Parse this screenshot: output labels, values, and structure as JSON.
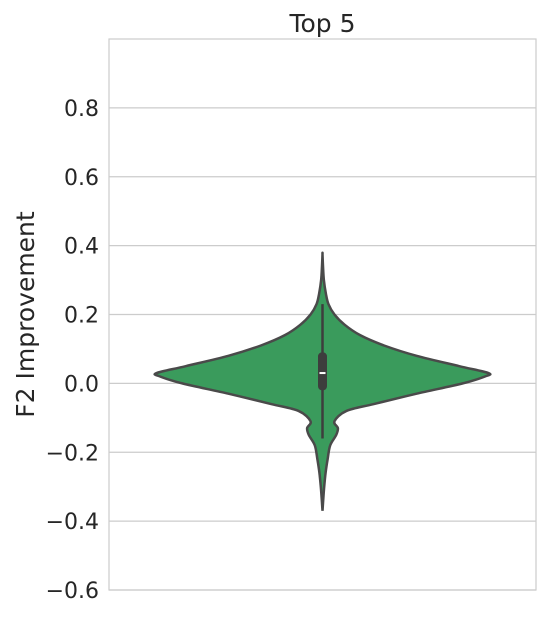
{
  "chart_data": {
    "type": "violin",
    "title": "Top 5",
    "xlabel": "",
    "ylabel": "F2 Improvement",
    "ylim": [
      -0.6,
      1.0
    ],
    "yticks": [
      -0.6,
      -0.4,
      -0.2,
      0.0,
      0.2,
      0.4,
      0.6,
      0.8
    ],
    "ytick_labels": [
      "−0.6",
      "−0.4",
      "−0.2",
      "0.0",
      "0.2",
      "0.4",
      "0.6",
      "0.8"
    ],
    "grid": true,
    "fill_color": "#3a9b5c",
    "edge_color": "#4a4a4a",
    "violin": {
      "min": -0.37,
      "max": 0.375,
      "q1": -0.02,
      "median": 0.03,
      "q3": 0.09,
      "whisker_low": -0.16,
      "whisker_high": 0.23,
      "density_profile": [
        [
          -0.37,
          0.0
        ],
        [
          -0.34,
          0.004
        ],
        [
          -0.3,
          0.01
        ],
        [
          -0.26,
          0.018
        ],
        [
          -0.22,
          0.03
        ],
        [
          -0.18,
          0.045
        ],
        [
          -0.15,
          0.08
        ],
        [
          -0.13,
          0.09
        ],
        [
          -0.11,
          0.07
        ],
        [
          -0.08,
          0.14
        ],
        [
          -0.06,
          0.3
        ],
        [
          -0.03,
          0.55
        ],
        [
          0.0,
          0.82
        ],
        [
          0.02,
          0.95
        ],
        [
          0.03,
          0.97
        ],
        [
          0.05,
          0.8
        ],
        [
          0.08,
          0.55
        ],
        [
          0.11,
          0.36
        ],
        [
          0.14,
          0.22
        ],
        [
          0.17,
          0.13
        ],
        [
          0.2,
          0.07
        ],
        [
          0.23,
          0.035
        ],
        [
          0.26,
          0.02
        ],
        [
          0.3,
          0.008
        ],
        [
          0.34,
          0.003
        ],
        [
          0.375,
          0.0
        ]
      ]
    }
  }
}
